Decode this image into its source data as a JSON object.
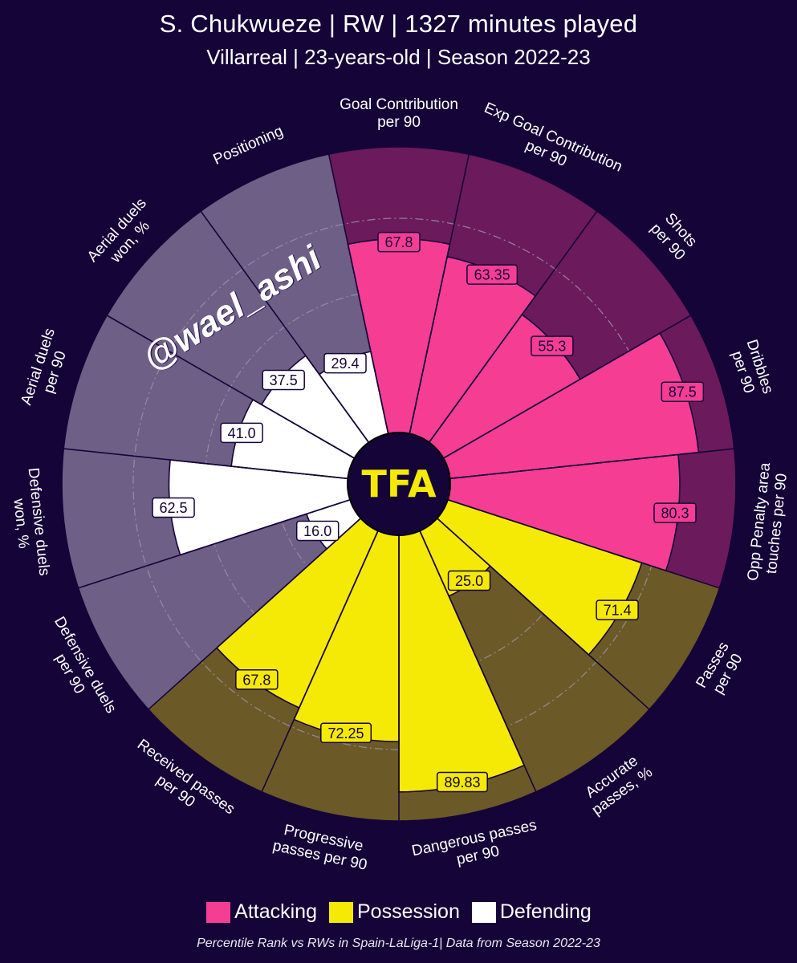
{
  "header": {
    "title": "S. Chukwueze | RW | 1327 minutes played",
    "subtitle": "Villarreal | 23-years-old | Season 2022-23"
  },
  "legend": [
    {
      "label": "Attacking",
      "color": "#f53d94"
    },
    {
      "label": "Possession",
      "color": "#f5ea05"
    },
    {
      "label": "Defending",
      "color": "#ffffff"
    }
  ],
  "footer": "Percentile Rank vs RWs in Spain-LaLiga-1| Data from Season 2022-23",
  "watermark": "@wael_ashi",
  "logo_text": "TFA",
  "colors": {
    "background": "#150438",
    "attacking": "#f53d94",
    "attacking_bg": "#6b1a5c",
    "possession": "#f5ea05",
    "possession_bg": "#6b5a27",
    "defending": "#ffffff",
    "defending_bg": "#6e5f87",
    "logo": "#f5ea05"
  },
  "chart_data": {
    "type": "radial-bar",
    "scale": [
      0,
      100
    ],
    "grid": true,
    "series": [
      {
        "name": "Attacking"
      },
      {
        "name": "Possession"
      },
      {
        "name": "Defending"
      }
    ],
    "categories": [
      {
        "label": "Goal Contribution\nper 90",
        "value": 67.8,
        "value_label": "67.8",
        "group": "Attacking"
      },
      {
        "label": "Exp Goal Contribution\nper 90",
        "value": 63.35,
        "value_label": "63.35",
        "group": "Attacking"
      },
      {
        "label": "Shots\nper 90",
        "value": 55.3,
        "value_label": "55.3",
        "group": "Attacking"
      },
      {
        "label": "Dribbles\nper 90",
        "value": 87.5,
        "value_label": "87.5",
        "group": "Attacking"
      },
      {
        "label": "Opp Penalty area\ntouches per 90",
        "value": 80.3,
        "value_label": "80.3",
        "group": "Attacking"
      },
      {
        "label": "Passes\nper 90",
        "value": 71.4,
        "value_label": "71.4",
        "group": "Possession"
      },
      {
        "label": "Accurate\npasses, %",
        "value": 25.0,
        "value_label": "25.0",
        "group": "Possession"
      },
      {
        "label": "Dangerous passes\nper 90",
        "value": 89.83,
        "value_label": "89.83",
        "group": "Possession"
      },
      {
        "label": "Progressive\npasses per 90",
        "value": 72.25,
        "value_label": "72.25",
        "group": "Possession"
      },
      {
        "label": "Received passes\nper 90",
        "value": 67.8,
        "value_label": "67.8",
        "group": "Possession"
      },
      {
        "label": "Defensive duels\nper 90",
        "value": 16.0,
        "value_label": "16.0",
        "group": "Defending"
      },
      {
        "label": "Defensive duels\nwon, %",
        "value": 62.5,
        "value_label": "62.5",
        "group": "Defending"
      },
      {
        "label": "Aerial duels\nper 90",
        "value": 41.0,
        "value_label": "41.0",
        "group": "Defending"
      },
      {
        "label": "Aerial duels\nwon, %",
        "value": 37.5,
        "value_label": "37.5",
        "group": "Defending"
      },
      {
        "label": "Positioning",
        "value": 29.4,
        "value_label": "29.4",
        "group": "Defending"
      }
    ]
  }
}
